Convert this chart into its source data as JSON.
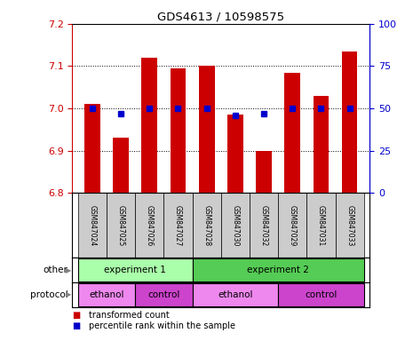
{
  "title": "GDS4613 / 10598575",
  "samples": [
    "GSM847024",
    "GSM847025",
    "GSM847026",
    "GSM847027",
    "GSM847028",
    "GSM847030",
    "GSM847032",
    "GSM847029",
    "GSM847031",
    "GSM847033"
  ],
  "bar_values": [
    7.01,
    6.93,
    7.12,
    7.095,
    7.1,
    6.985,
    6.9,
    7.085,
    7.03,
    7.135
  ],
  "percentile_values": [
    50,
    47,
    50,
    50,
    50,
    46,
    47,
    50,
    50,
    50
  ],
  "ylim": [
    6.8,
    7.2
  ],
  "yticks": [
    6.8,
    6.9,
    7.0,
    7.1,
    7.2
  ],
  "right_yticks": [
    0,
    25,
    50,
    75,
    100
  ],
  "right_ylim": [
    0,
    100
  ],
  "bar_color": "#cc0000",
  "dot_color": "#0000cc",
  "bar_width": 0.55,
  "grid_color": "black",
  "tick_color_left": "#cc0000",
  "tick_color_right": "#0000cc",
  "experiment1_color": "#aaffaa",
  "experiment2_color": "#55cc55",
  "ethanol_color": "#ee88ee",
  "control_color": "#cc44cc",
  "sample_bg_color": "#cccccc",
  "other_label": "other",
  "protocol_label": "protocol",
  "legend_red_label": "transformed count",
  "legend_blue_label": "percentile rank within the sample",
  "exp1_text": "experiment 1",
  "exp2_text": "experiment 2",
  "ethanol_text": "ethanol",
  "control_text": "control"
}
